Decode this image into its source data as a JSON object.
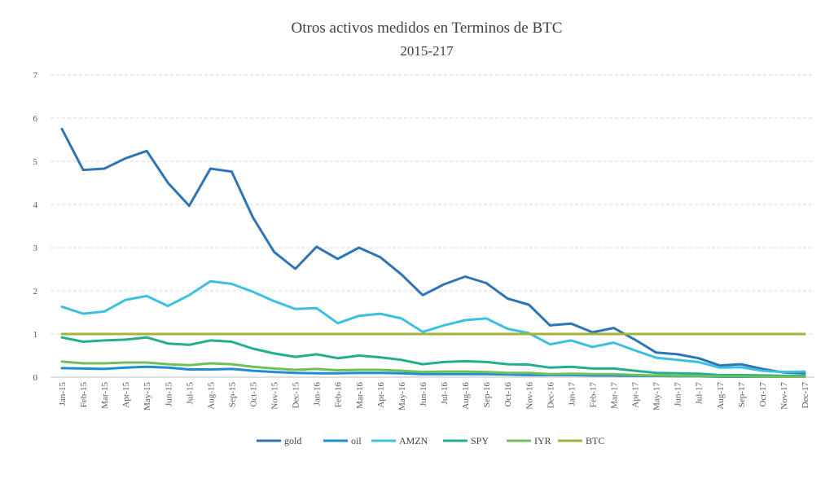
{
  "chart_data": {
    "type": "line",
    "title": "Otros activos medidos en Terminos de BTC",
    "subtitle": "2015-217",
    "xlabel": "",
    "ylabel": "",
    "ylim": [
      0,
      7
    ],
    "yticks": [
      0,
      1,
      2,
      3,
      4,
      5,
      6,
      7
    ],
    "grid": true,
    "legend": "bottom",
    "categories": [
      "Jan-15",
      "Feb-15",
      "Mar-15",
      "Apr-15",
      "May-15",
      "Jun-15",
      "Jul-15",
      "Aug-15",
      "Sep-15",
      "Oct-15",
      "Nov-15",
      "Dec-15",
      "Jan-16",
      "Feb-16",
      "Mar-16",
      "Apr-16",
      "May-16",
      "Jun-16",
      "Jul-16",
      "Aug-16",
      "Sep-16",
      "Oct-16",
      "Nov-16",
      "Dec-16",
      "Jan-17",
      "Feb-17",
      "Mar-17",
      "Apr-17",
      "May-17",
      "Jun-17",
      "Jul-17",
      "Aug-17",
      "Sep-17",
      "Oct-17",
      "Nov-17",
      "Dec-17"
    ],
    "series": [
      {
        "name": "gold",
        "color": "#2e75b6",
        "values": [
          5.75,
          4.8,
          4.83,
          5.07,
          5.24,
          4.5,
          3.97,
          4.83,
          4.76,
          3.7,
          2.9,
          2.51,
          3.02,
          2.74,
          3.0,
          2.78,
          2.38,
          1.9,
          2.15,
          2.33,
          2.18,
          1.82,
          1.68,
          1.2,
          1.24,
          1.04,
          1.14,
          0.87,
          0.57,
          0.53,
          0.44,
          0.27,
          0.3,
          0.19,
          0.11,
          0.09
        ]
      },
      {
        "name": "oil",
        "color": "#1f8dd6",
        "values": [
          0.21,
          0.2,
          0.19,
          0.22,
          0.24,
          0.22,
          0.18,
          0.18,
          0.19,
          0.15,
          0.12,
          0.1,
          0.09,
          0.09,
          0.1,
          0.1,
          0.09,
          0.07,
          0.07,
          0.07,
          0.07,
          0.06,
          0.05,
          0.05,
          0.05,
          0.04,
          0.04,
          0.03,
          0.03,
          0.02,
          0.02,
          0.01,
          0.01,
          0.01,
          0.01,
          0.01
        ]
      },
      {
        "name": "AMZN",
        "color": "#3dc0e0",
        "values": [
          1.63,
          1.47,
          1.52,
          1.79,
          1.88,
          1.65,
          1.9,
          2.22,
          2.16,
          1.98,
          1.76,
          1.58,
          1.6,
          1.25,
          1.42,
          1.47,
          1.36,
          1.05,
          1.2,
          1.32,
          1.36,
          1.12,
          1.02,
          0.76,
          0.85,
          0.7,
          0.8,
          0.62,
          0.45,
          0.4,
          0.35,
          0.22,
          0.23,
          0.15,
          0.12,
          0.13
        ]
      },
      {
        "name": "SPY",
        "color": "#23ae8e",
        "values": [
          0.92,
          0.82,
          0.85,
          0.87,
          0.92,
          0.78,
          0.75,
          0.85,
          0.82,
          0.66,
          0.55,
          0.47,
          0.53,
          0.44,
          0.5,
          0.46,
          0.4,
          0.3,
          0.35,
          0.37,
          0.35,
          0.3,
          0.29,
          0.22,
          0.24,
          0.2,
          0.2,
          0.15,
          0.1,
          0.09,
          0.08,
          0.05,
          0.05,
          0.04,
          0.03,
          0.03
        ]
      },
      {
        "name": "IYR",
        "color": "#70bf5a",
        "values": [
          0.36,
          0.32,
          0.32,
          0.34,
          0.34,
          0.3,
          0.28,
          0.32,
          0.3,
          0.24,
          0.2,
          0.17,
          0.19,
          0.16,
          0.17,
          0.17,
          0.15,
          0.12,
          0.13,
          0.13,
          0.12,
          0.1,
          0.1,
          0.07,
          0.08,
          0.07,
          0.07,
          0.05,
          0.04,
          0.03,
          0.03,
          0.02,
          0.02,
          0.01,
          0.01,
          0.01
        ]
      },
      {
        "name": "BTC",
        "color": "#a6b33a",
        "values": [
          1,
          1,
          1,
          1,
          1,
          1,
          1,
          1,
          1,
          1,
          1,
          1,
          1,
          1,
          1,
          1,
          1,
          1,
          1,
          1,
          1,
          1,
          1,
          1,
          1,
          1,
          1,
          1,
          1,
          1,
          1,
          1,
          1,
          1,
          1,
          1
        ]
      }
    ]
  }
}
